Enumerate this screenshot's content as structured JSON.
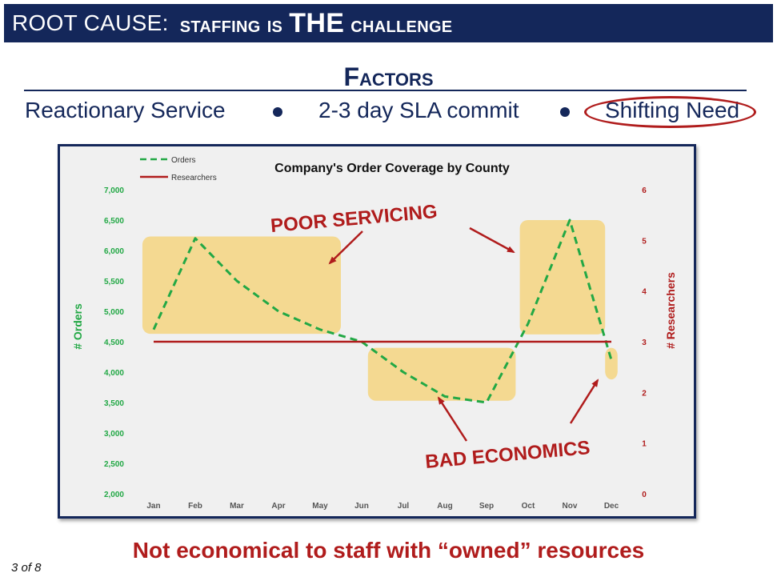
{
  "slide": {
    "title_prefix": "ROOT CAUSE:",
    "title_word1": "staffing is",
    "title_big": "THE",
    "title_word2": "challenge",
    "factors_heading": "Factors",
    "factors": [
      "Reactionary Service",
      "2-3 day SLA commit",
      "Shifting Need"
    ],
    "footer": "Not economical to staff with “owned” resources",
    "page_number": "3 of 8"
  },
  "colors": {
    "navy": "#14275a",
    "red": "#b01c1c",
    "green": "#22a845",
    "highlight": "#f5d580"
  },
  "chart_data": {
    "type": "line",
    "title": "Company's Order Coverage by County",
    "categories": [
      "Jan",
      "Feb",
      "Mar",
      "Apr",
      "May",
      "Jun",
      "Jul",
      "Aug",
      "Sep",
      "Oct",
      "Nov",
      "Dec"
    ],
    "series": [
      {
        "name": "Orders",
        "axis": "left",
        "style": "dashed",
        "color": "#22a845",
        "values": [
          4700,
          6200,
          5500,
          5000,
          4700,
          4500,
          4000,
          3600,
          3500,
          4800,
          6500,
          4200
        ]
      },
      {
        "name": "Researchers",
        "axis": "right",
        "style": "solid",
        "color": "#b01c1c",
        "values": [
          3,
          3,
          3,
          3,
          3,
          3,
          3,
          3,
          3,
          3,
          3,
          3
        ]
      }
    ],
    "ylabel": "# Orders",
    "y2label": "# Researchers",
    "ylim": [
      2000,
      7000
    ],
    "y2lim": [
      0,
      6
    ],
    "yticks": [
      "2,000",
      "2,500",
      "3,000",
      "3,500",
      "4,000",
      "4,500",
      "5,000",
      "5,500",
      "6,000",
      "6,500",
      "7,000"
    ],
    "y2ticks": [
      "0",
      "1",
      "2",
      "3",
      "4",
      "5",
      "6"
    ],
    "legend_position": "top-left",
    "grid": false,
    "annotations": {
      "poor_servicing": "POOR SERVICING",
      "bad_economics": "BAD ECONOMICS"
    }
  }
}
